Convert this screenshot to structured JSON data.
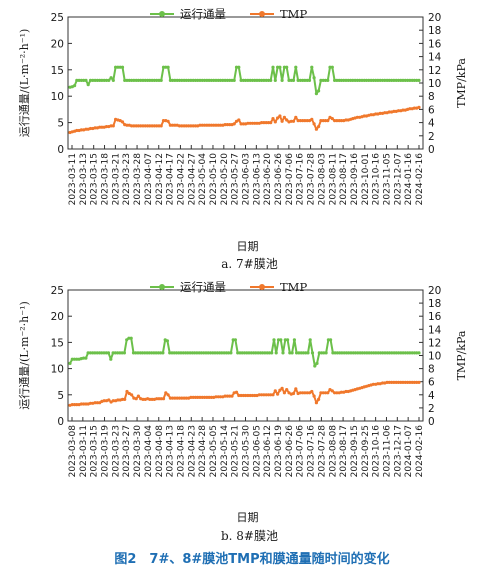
{
  "caption": "图2　7#、8#膜池TMP和膜通量随时间的变化",
  "colors": {
    "flux": "#6cc04a",
    "tmp": "#f0782c",
    "caption": "#1f6fb4"
  },
  "chart_data": [
    {
      "type": "line",
      "subtitle": "a. 7#膜池",
      "xlabel": "日期",
      "ylabel_left": "运行通量/(L·m⁻²·h⁻¹)",
      "ylabel_right": "TMP/kPa",
      "ylim_left": [
        0,
        25
      ],
      "ylim_right": [
        0,
        20
      ],
      "yticks_left": [
        "0",
        "5",
        "10",
        "15",
        "20",
        "25"
      ],
      "yticks_right": [
        "0",
        "2",
        "4",
        "6",
        "8",
        "10",
        "12",
        "14",
        "16",
        "18",
        "20"
      ],
      "grid": false,
      "legend_position": "top-center",
      "x_tick_labels": [
        "2023-03-11",
        "2023-03-13",
        "2023-03-15",
        "2023-03-18",
        "2023-03-21",
        "2023-03-23",
        "2023-03-28",
        "2023-04-07",
        "2023-04-12",
        "2023-04-17",
        "2023-04-22",
        "2023-04-27",
        "2023-05-04",
        "2023-05-10",
        "2023-05-20",
        "2023-05-27",
        "2023-06-03",
        "2023-06-13",
        "2023-06-20",
        "2023-06-26",
        "2023-07-06",
        "2023-07-16",
        "2023-07-28",
        "2023-08-03",
        "2023-08-11",
        "2023-08-17",
        "2023-09-16",
        "2023-10-01",
        "2023-10-16",
        "2023-11-05",
        "2023-12-07",
        "2024-01-16",
        "2024-02-16"
      ],
      "series": [
        {
          "name": "运行通量",
          "axis": "left",
          "values": [
            11.7,
            11.8,
            12.0,
            13.0,
            13.0,
            13.0,
            13.0,
            13.0,
            12.2,
            13.0,
            13.0,
            13.0,
            13.0,
            13.0,
            13.0,
            13.0,
            13.0,
            13.0,
            13.5,
            13.0,
            15.5,
            15.5,
            15.5,
            15.5,
            13.0,
            13.0,
            13.0,
            13.0,
            13.0,
            13.0,
            13.0,
            13.0,
            13.0,
            13.0,
            13.0,
            13.0,
            13.0,
            13.0,
            13.0,
            13.0,
            13.0,
            15.5,
            15.5,
            15.5,
            13.0,
            13.0,
            13.0,
            13.0,
            13.0,
            13.0,
            13.0,
            13.0,
            13.0,
            13.0,
            13.0,
            13.0,
            13.0,
            13.0,
            13.0,
            13.0,
            13.0,
            13.0,
            13.0,
            13.0,
            13.0,
            13.0,
            13.0,
            13.0,
            13.0,
            13.0,
            13.0,
            13.0,
            13.0,
            15.5,
            15.5,
            13.0,
            13.0,
            13.0,
            13.0,
            13.0,
            13.0,
            13.0,
            13.0,
            13.0,
            13.0,
            13.0,
            13.0,
            13.0,
            13.0,
            15.5,
            13.0,
            15.5,
            15.5,
            13.0,
            15.5,
            15.5,
            13.0,
            13.0,
            13.0,
            15.5,
            13.0,
            13.0,
            13.0,
            13.0,
            13.0,
            13.0,
            15.5,
            13.5,
            10.5,
            11.0,
            13.0,
            13.0,
            13.0,
            13.0,
            15.5,
            15.5,
            13.0,
            13.0,
            13.0,
            13.0,
            13.0,
            13.0,
            13.0,
            13.0,
            13.0,
            13.0,
            13.0,
            13.0,
            13.0,
            13.0,
            13.0,
            13.0,
            13.0,
            13.0,
            13.0,
            13.0,
            13.0,
            13.0,
            13.0,
            13.0,
            13.0,
            13.0,
            13.0,
            13.0,
            13.0,
            13.0,
            13.0,
            13.0,
            13.0,
            13.0,
            13.0,
            13.0,
            13.0,
            13.0
          ]
        },
        {
          "name": "TMP",
          "axis": "right",
          "values": [
            2.5,
            2.6,
            2.7,
            2.8,
            2.8,
            2.9,
            2.9,
            3.0,
            3.0,
            3.1,
            3.1,
            3.2,
            3.2,
            3.3,
            3.3,
            3.3,
            3.4,
            3.4,
            3.5,
            3.5,
            4.5,
            4.4,
            4.3,
            4.1,
            3.7,
            3.6,
            3.6,
            3.5,
            3.5,
            3.5,
            3.5,
            3.5,
            3.5,
            3.5,
            3.5,
            3.5,
            3.5,
            3.5,
            3.5,
            3.5,
            3.5,
            4.3,
            4.3,
            4.2,
            3.6,
            3.6,
            3.6,
            3.6,
            3.5,
            3.5,
            3.5,
            3.5,
            3.5,
            3.5,
            3.5,
            3.5,
            3.5,
            3.6,
            3.6,
            3.6,
            3.6,
            3.6,
            3.6,
            3.6,
            3.6,
            3.6,
            3.6,
            3.6,
            3.7,
            3.7,
            3.7,
            3.7,
            3.8,
            4.2,
            4.4,
            3.8,
            3.8,
            3.8,
            3.9,
            3.9,
            3.9,
            3.9,
            3.9,
            3.9,
            4.0,
            4.0,
            4.0,
            4.0,
            4.0,
            4.6,
            4.1,
            4.7,
            5.0,
            4.2,
            4.8,
            4.4,
            4.1,
            4.2,
            4.2,
            4.8,
            4.3,
            4.3,
            4.3,
            4.3,
            4.3,
            4.3,
            4.5,
            3.8,
            3.0,
            3.4,
            4.3,
            4.3,
            4.3,
            4.3,
            4.8,
            4.6,
            4.3,
            4.3,
            4.3,
            4.3,
            4.3,
            4.4,
            4.4,
            4.5,
            4.6,
            4.7,
            4.8,
            4.8,
            4.9,
            5.0,
            5.0,
            5.1,
            5.2,
            5.2,
            5.3,
            5.3,
            5.4,
            5.4,
            5.5,
            5.5,
            5.6,
            5.6,
            5.7,
            5.7,
            5.8,
            5.8,
            5.9,
            5.9,
            6.0,
            6.1,
            6.1,
            6.2,
            6.2,
            6.3
          ]
        }
      ]
    },
    {
      "type": "line",
      "subtitle": "b. 8#膜池",
      "xlabel": "日期",
      "ylabel_left": "运行通量/(L·m⁻²·h⁻¹)",
      "ylabel_right": "TMP/kPa",
      "ylim_left": [
        0,
        25
      ],
      "ylim_right": [
        0,
        20
      ],
      "yticks_left": [
        "0",
        "5",
        "10",
        "15",
        "20",
        "25"
      ],
      "yticks_right": [
        "0",
        "2",
        "4",
        "6",
        "8",
        "10",
        "12",
        "14",
        "16",
        "18",
        "20"
      ],
      "grid": false,
      "legend_position": "top-center",
      "x_tick_labels": [
        "2023-03-08",
        "2023-03-11",
        "2023-03-15",
        "2023-03-19",
        "2023-03-23",
        "2023-03-27",
        "2023-03-30",
        "2023-04-04",
        "2023-04-08",
        "2023-04-13",
        "2023-04-18",
        "2023-04-23",
        "2023-04-28",
        "2023-05-05",
        "2023-05-14",
        "2023-05-21",
        "2023-05-30",
        "2023-06-05",
        "2023-06-12",
        "2023-06-19",
        "2023-06-26",
        "2023-07-06",
        "2023-07-16",
        "2023-07-28",
        "2023-08-08",
        "2023-08-17",
        "2023-09-15",
        "2023-09-25",
        "2023-10-16",
        "2023-11-06",
        "2023-12-17",
        "2024-01-07",
        "2024-02-16"
      ],
      "series": [
        {
          "name": "运行通量",
          "axis": "left",
          "values": [
            11.0,
            11.8,
            11.8,
            11.8,
            11.8,
            11.9,
            12.0,
            12.0,
            13.0,
            13.0,
            13.0,
            13.0,
            13.0,
            13.0,
            13.0,
            13.0,
            13.0,
            13.0,
            11.8,
            13.0,
            13.0,
            13.0,
            13.0,
            13.0,
            13.0,
            15.5,
            15.8,
            15.8,
            13.0,
            13.0,
            13.0,
            13.0,
            13.0,
            13.0,
            13.0,
            13.0,
            13.0,
            13.0,
            13.0,
            13.0,
            13.0,
            13.0,
            15.5,
            15.3,
            13.0,
            13.0,
            13.0,
            13.0,
            13.0,
            13.0,
            13.0,
            13.0,
            13.0,
            13.0,
            13.0,
            13.0,
            13.0,
            13.0,
            13.0,
            13.0,
            13.0,
            13.0,
            13.0,
            13.0,
            13.0,
            13.0,
            13.0,
            13.0,
            13.0,
            13.0,
            13.0,
            13.0,
            15.5,
            15.5,
            13.0,
            13.0,
            13.0,
            13.0,
            13.0,
            13.0,
            13.0,
            13.0,
            13.0,
            13.0,
            13.0,
            13.0,
            13.0,
            13.0,
            13.0,
            13.0,
            15.5,
            13.0,
            15.5,
            15.5,
            13.0,
            15.5,
            15.5,
            13.0,
            13.0,
            15.5,
            13.0,
            13.0,
            13.0,
            13.0,
            13.0,
            13.0,
            15.5,
            13.0,
            10.5,
            11.0,
            13.0,
            13.0,
            13.0,
            13.0,
            15.5,
            15.5,
            13.0,
            13.0,
            13.0,
            13.0,
            13.0,
            13.0,
            13.0,
            13.0,
            13.0,
            13.0,
            13.0,
            13.0,
            13.0,
            13.0,
            13.0,
            13.0,
            13.0,
            13.0,
            13.0,
            13.0,
            13.0,
            13.0,
            13.0,
            13.0,
            13.0,
            13.0,
            13.0,
            13.0,
            13.0,
            13.0,
            13.0,
            13.0,
            13.0,
            13.0,
            13.0,
            13.0,
            13.0,
            13.0,
            13.0
          ]
        },
        {
          "name": "TMP",
          "axis": "right",
          "values": [
            2.4,
            2.5,
            2.5,
            2.5,
            2.5,
            2.6,
            2.6,
            2.6,
            2.6,
            2.7,
            2.7,
            2.8,
            2.8,
            2.8,
            3.0,
            3.1,
            3.1,
            3.2,
            2.9,
            3.1,
            3.1,
            3.2,
            3.2,
            3.3,
            3.3,
            4.5,
            4.2,
            4.0,
            3.5,
            3.4,
            3.8,
            3.4,
            3.3,
            3.3,
            3.4,
            3.3,
            3.3,
            3.3,
            3.4,
            3.4,
            3.4,
            3.4,
            4.3,
            4.0,
            3.5,
            3.5,
            3.5,
            3.5,
            3.5,
            3.5,
            3.5,
            3.5,
            3.5,
            3.6,
            3.6,
            3.6,
            3.6,
            3.6,
            3.6,
            3.6,
            3.6,
            3.6,
            3.6,
            3.6,
            3.7,
            3.7,
            3.7,
            3.7,
            3.8,
            3.8,
            3.8,
            3.8,
            4.3,
            4.4,
            3.9,
            3.9,
            3.9,
            3.9,
            3.9,
            3.9,
            3.9,
            3.9,
            3.9,
            4.0,
            4.0,
            4.0,
            4.0,
            4.0,
            4.0,
            4.0,
            4.6,
            4.1,
            4.7,
            5.0,
            4.3,
            4.8,
            4.3,
            4.1,
            4.2,
            4.9,
            4.2,
            4.3,
            4.3,
            4.3,
            4.3,
            4.3,
            4.5,
            3.8,
            2.8,
            3.3,
            4.3,
            4.3,
            4.3,
            4.3,
            4.8,
            4.6,
            4.3,
            4.3,
            4.3,
            4.4,
            4.4,
            4.5,
            4.5,
            4.6,
            4.7,
            4.8,
            4.9,
            5.0,
            5.1,
            5.2,
            5.3,
            5.4,
            5.5,
            5.6,
            5.6,
            5.7,
            5.7,
            5.8,
            5.8,
            5.9,
            5.9,
            5.9,
            5.9,
            5.9,
            5.9,
            5.9,
            5.9,
            5.9,
            5.9,
            5.9,
            5.9,
            5.9,
            5.9,
            5.9
          ]
        }
      ]
    }
  ]
}
